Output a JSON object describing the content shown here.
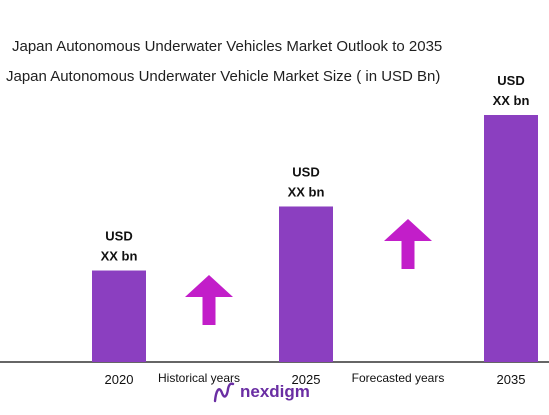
{
  "header": {
    "title": "Japan Autonomous Underwater Vehicles Market Outlook to 2035",
    "subtitle": "Japan Autonomous Underwater Vehicle Market Size ( in USD Bn)"
  },
  "colors": {
    "bar": "#8b3fc0",
    "arrow": "#c21ec9",
    "axis": "#333333",
    "logo": "#6a2ea3"
  },
  "chart_data": {
    "type": "bar",
    "categories": [
      "2020",
      "2025",
      "2035"
    ],
    "values": [
      1.0,
      1.7,
      2.7
    ],
    "value_labels": [
      [
        "USD",
        "XX bn"
      ],
      [
        "USD",
        "XX bn"
      ],
      [
        "USD",
        "XX bn"
      ]
    ],
    "title": "Japan Autonomous Underwater Vehicles Market Outlook to 2035",
    "subtitle": "Japan Autonomous Underwater Vehicle Market Size ( in USD Bn)",
    "xlabel": "",
    "ylabel": "",
    "ylim": [
      0,
      3
    ],
    "grid": false,
    "legend": "none",
    "period_labels": [
      "Historical years",
      "Forecasted years"
    ],
    "trend_arrows": [
      "up",
      "up"
    ]
  },
  "logo": {
    "text": "nexdigm",
    "icon": "nexdigm-logo-icon"
  }
}
